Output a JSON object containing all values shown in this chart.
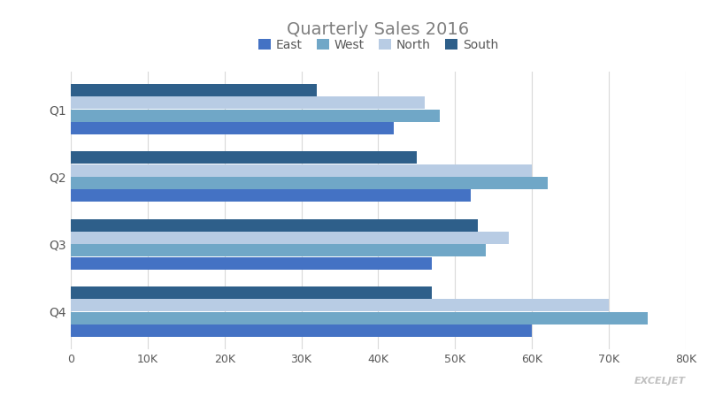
{
  "title": "Quarterly Sales 2016",
  "title_color": "#7F7F7F",
  "title_fontsize": 14,
  "categories": [
    "Q1",
    "Q2",
    "Q3",
    "Q4"
  ],
  "series": [
    {
      "label": "East",
      "color": "#4472C4",
      "values": [
        42000,
        52000,
        47000,
        60000
      ]
    },
    {
      "label": "West",
      "color": "#70A7C7",
      "values": [
        48000,
        62000,
        54000,
        75000
      ]
    },
    {
      "label": "North",
      "color": "#B8CCE4",
      "values": [
        46000,
        60000,
        57000,
        70000
      ]
    },
    {
      "label": "South",
      "color": "#2E5F8A",
      "values": [
        32000,
        45000,
        53000,
        47000
      ]
    }
  ],
  "xlim": [
    0,
    80000
  ],
  "xtick_step": 10000,
  "background_color": "#FFFFFF",
  "plot_bg_color": "#FFFFFF",
  "grid_color": "#D9D9D9",
  "legend_fontsize": 10,
  "axis_label_color": "#595959",
  "tick_fontsize": 9,
  "ylabel_fontsize": 10
}
